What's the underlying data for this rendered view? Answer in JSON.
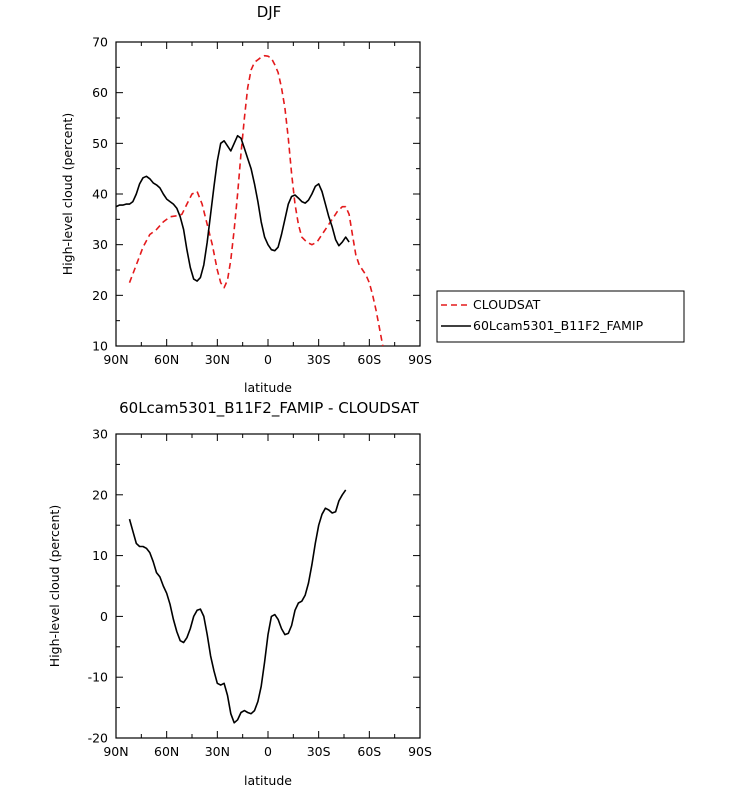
{
  "chart_data": [
    {
      "type": "line",
      "title": "DJF",
      "xlabel": "latitude",
      "ylabel": "High-level cloud (percent)",
      "xlim": [
        90,
        -90
      ],
      "ylim": [
        10,
        70
      ],
      "x_ticks": [
        90,
        60,
        30,
        0,
        -30,
        -60,
        -90
      ],
      "x_tick_labels": [
        "90N",
        "60N",
        "30N",
        "0",
        "30S",
        "60S",
        "90S"
      ],
      "y_ticks": [
        10,
        20,
        30,
        40,
        50,
        60,
        70
      ],
      "y_tick_labels": [
        "10",
        "20",
        "30",
        "40",
        "50",
        "60",
        "70"
      ],
      "legend_position": "right",
      "series": [
        {
          "name": "CLOUDSAT",
          "color": "#e41a1c",
          "dash": "dashed",
          "points": [
            [
              82,
              22.5
            ],
            [
              78,
              26
            ],
            [
              74,
              29.5
            ],
            [
              70,
              32
            ],
            [
              66,
              33
            ],
            [
              62,
              34.5
            ],
            [
              58,
              35.5
            ],
            [
              54,
              35.7
            ],
            [
              51,
              36
            ],
            [
              48,
              38
            ],
            [
              45,
              40
            ],
            [
              42,
              40.5
            ],
            [
              39,
              38
            ],
            [
              36,
              34
            ],
            [
              33,
              30
            ],
            [
              30,
              25
            ],
            [
              28,
              22.5
            ],
            [
              26,
              21.5
            ],
            [
              24,
              23
            ],
            [
              22,
              27
            ],
            [
              20,
              33
            ],
            [
              18,
              40
            ],
            [
              16,
              48
            ],
            [
              14,
              55
            ],
            [
              12,
              61
            ],
            [
              10,
              64.5
            ],
            [
              8,
              66
            ],
            [
              6,
              66.5
            ],
            [
              4,
              67
            ],
            [
              2,
              67.3
            ],
            [
              0,
              67.2
            ],
            [
              -2,
              66.8
            ],
            [
              -4,
              65.5
            ],
            [
              -6,
              64
            ],
            [
              -8,
              61
            ],
            [
              -10,
              57
            ],
            [
              -12,
              51
            ],
            [
              -14,
              44
            ],
            [
              -16,
              38
            ],
            [
              -18,
              34
            ],
            [
              -20,
              31.5
            ],
            [
              -23,
              30.5
            ],
            [
              -26,
              30
            ],
            [
              -29,
              30.5
            ],
            [
              -32,
              32
            ],
            [
              -35,
              33.5
            ],
            [
              -38,
              35
            ],
            [
              -41,
              36.5
            ],
            [
              -44,
              37.5
            ],
            [
              -46,
              37.5
            ],
            [
              -48,
              36
            ],
            [
              -50,
              32
            ],
            [
              -52,
              28
            ],
            [
              -54,
              26
            ],
            [
              -56,
              25
            ],
            [
              -58,
              24
            ],
            [
              -60,
              22.5
            ],
            [
              -62,
              20
            ],
            [
              -64,
              17
            ],
            [
              -66,
              13.5
            ],
            [
              -68,
              10
            ]
          ]
        },
        {
          "name": "60Lcam5301_B11F2_FAMIP",
          "color": "#000000",
          "dash": "solid",
          "points": [
            [
              90,
              37.5
            ],
            [
              88,
              37.8
            ],
            [
              86,
              37.8
            ],
            [
              84,
              38
            ],
            [
              82,
              38
            ],
            [
              80,
              38.5
            ],
            [
              78,
              40
            ],
            [
              76,
              42
            ],
            [
              74,
              43.2
            ],
            [
              72,
              43.5
            ],
            [
              70,
              43
            ],
            [
              68,
              42.2
            ],
            [
              66,
              41.8
            ],
            [
              64,
              41.2
            ],
            [
              62,
              40
            ],
            [
              60,
              39
            ],
            [
              58,
              38.5
            ],
            [
              56,
              38
            ],
            [
              54,
              37.2
            ],
            [
              52,
              35.5
            ],
            [
              50,
              33
            ],
            [
              48,
              29
            ],
            [
              46,
              25.5
            ],
            [
              44,
              23.2
            ],
            [
              42,
              22.8
            ],
            [
              40,
              23.5
            ],
            [
              38,
              26
            ],
            [
              36,
              30.5
            ],
            [
              34,
              36
            ],
            [
              32,
              41.5
            ],
            [
              30,
              46.5
            ],
            [
              28,
              50
            ],
            [
              26,
              50.5
            ],
            [
              24,
              49.5
            ],
            [
              22,
              48.5
            ],
            [
              20,
              50
            ],
            [
              18,
              51.5
            ],
            [
              16,
              51
            ],
            [
              14,
              49
            ],
            [
              12,
              47
            ],
            [
              10,
              45
            ],
            [
              8,
              42
            ],
            [
              6,
              38.5
            ],
            [
              4,
              34.5
            ],
            [
              2,
              31.5
            ],
            [
              0,
              30
            ],
            [
              -2,
              29
            ],
            [
              -4,
              28.8
            ],
            [
              -6,
              29.5
            ],
            [
              -8,
              32
            ],
            [
              -10,
              35
            ],
            [
              -12,
              38
            ],
            [
              -14,
              39.5
            ],
            [
              -16,
              39.8
            ],
            [
              -18,
              39.2
            ],
            [
              -20,
              38.5
            ],
            [
              -22,
              38.2
            ],
            [
              -24,
              38.8
            ],
            [
              -26,
              40
            ],
            [
              -28,
              41.5
            ],
            [
              -30,
              42
            ],
            [
              -32,
              40.5
            ],
            [
              -34,
              38
            ],
            [
              -36,
              35.5
            ],
            [
              -38,
              33.5
            ],
            [
              -40,
              31
            ],
            [
              -42,
              29.8
            ],
            [
              -44,
              30.5
            ],
            [
              -46,
              31.5
            ],
            [
              -48,
              30.5
            ]
          ]
        }
      ]
    },
    {
      "type": "line",
      "title": "60Lcam5301_B11F2_FAMIP - CLOUDSAT",
      "xlabel": "latitude",
      "ylabel": "High-level cloud (percent)",
      "xlim": [
        90,
        -90
      ],
      "ylim": [
        -20,
        30
      ],
      "x_ticks": [
        90,
        60,
        30,
        0,
        -30,
        -60,
        -90
      ],
      "x_tick_labels": [
        "90N",
        "60N",
        "30N",
        "0",
        "30S",
        "60S",
        "90S"
      ],
      "y_ticks": [
        -20,
        -10,
        0,
        10,
        20,
        30
      ],
      "y_tick_labels": [
        "-20",
        "-10",
        "0",
        "10",
        "20",
        "30"
      ],
      "series": [
        {
          "color": "#000000",
          "dash": "solid",
          "points": [
            [
              82,
              16
            ],
            [
              80,
              14
            ],
            [
              78,
              12
            ],
            [
              76,
              11.5
            ],
            [
              74,
              11.5
            ],
            [
              72,
              11.2
            ],
            [
              70,
              10.5
            ],
            [
              68,
              9
            ],
            [
              66,
              7.2
            ],
            [
              64,
              6.5
            ],
            [
              62,
              5
            ],
            [
              60,
              3.8
            ],
            [
              58,
              2
            ],
            [
              56,
              -0.5
            ],
            [
              54,
              -2.5
            ],
            [
              52,
              -4
            ],
            [
              50,
              -4.3
            ],
            [
              48,
              -3.5
            ],
            [
              46,
              -2
            ],
            [
              44,
              0
            ],
            [
              42,
              1
            ],
            [
              40,
              1.2
            ],
            [
              38,
              0
            ],
            [
              36,
              -3
            ],
            [
              34,
              -6.5
            ],
            [
              32,
              -9
            ],
            [
              30,
              -11
            ],
            [
              28,
              -11.3
            ],
            [
              26,
              -11
            ],
            [
              24,
              -13
            ],
            [
              22,
              -16
            ],
            [
              20,
              -17.5
            ],
            [
              18,
              -17
            ],
            [
              16,
              -15.8
            ],
            [
              14,
              -15.5
            ],
            [
              12,
              -15.8
            ],
            [
              10,
              -16
            ],
            [
              8,
              -15.5
            ],
            [
              6,
              -14
            ],
            [
              4,
              -11.5
            ],
            [
              2,
              -7.5
            ],
            [
              0,
              -3
            ],
            [
              -2,
              0
            ],
            [
              -4,
              0.3
            ],
            [
              -6,
              -0.5
            ],
            [
              -8,
              -2
            ],
            [
              -10,
              -3
            ],
            [
              -12,
              -2.8
            ],
            [
              -14,
              -1.5
            ],
            [
              -16,
              1
            ],
            [
              -18,
              2.2
            ],
            [
              -20,
              2.5
            ],
            [
              -22,
              3.5
            ],
            [
              -24,
              5.5
            ],
            [
              -26,
              8.5
            ],
            [
              -28,
              12
            ],
            [
              -30,
              15
            ],
            [
              -32,
              16.8
            ],
            [
              -34,
              17.8
            ],
            [
              -36,
              17.5
            ],
            [
              -38,
              17
            ],
            [
              -40,
              17.2
            ],
            [
              -42,
              19
            ],
            [
              -44,
              20
            ],
            [
              -46,
              20.8
            ]
          ]
        }
      ]
    }
  ]
}
